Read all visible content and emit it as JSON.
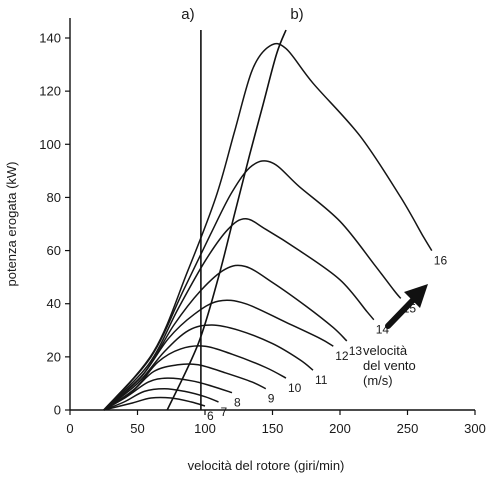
{
  "chart_data": {
    "type": "line",
    "title": "",
    "xlabel": "velocità del rotore (giri/min)",
    "ylabel": "potenza erogata (kW)",
    "xlim": [
      0,
      300
    ],
    "ylim": [
      0,
      145
    ],
    "xticks": [
      0,
      50,
      100,
      150,
      200,
      250,
      300
    ],
    "yticks": [
      0,
      20,
      40,
      60,
      80,
      100,
      120,
      140
    ],
    "grid": false,
    "series": [
      {
        "name": "6",
        "points": [
          [
            25,
            0
          ],
          [
            45,
            2.5
          ],
          [
            60,
            4.5
          ],
          [
            75,
            4.5
          ],
          [
            90,
            3
          ],
          [
            100,
            1.5
          ]
        ]
      },
      {
        "name": "7",
        "points": [
          [
            25,
            0
          ],
          [
            40,
            3
          ],
          [
            55,
            7
          ],
          [
            70,
            8
          ],
          [
            85,
            7
          ],
          [
            100,
            5
          ],
          [
            110,
            3
          ]
        ]
      },
      {
        "name": "8",
        "points": [
          [
            25,
            0
          ],
          [
            42,
            5
          ],
          [
            58,
            10.5
          ],
          [
            72,
            12
          ],
          [
            90,
            11
          ],
          [
            105,
            9
          ],
          [
            120,
            6.5
          ]
        ]
      },
      {
        "name": "9",
        "points": [
          [
            25,
            0
          ],
          [
            45,
            6.5
          ],
          [
            62,
            14.5
          ],
          [
            80,
            17
          ],
          [
            95,
            17
          ],
          [
            115,
            14
          ],
          [
            135,
            10.5
          ],
          [
            145,
            8
          ]
        ]
      },
      {
        "name": "10",
        "points": [
          [
            25,
            0
          ],
          [
            48,
            8
          ],
          [
            65,
            18
          ],
          [
            82,
            23
          ],
          [
            100,
            24
          ],
          [
            120,
            21
          ],
          [
            145,
            16
          ],
          [
            160,
            12
          ]
        ]
      },
      {
        "name": "11",
        "points": [
          [
            25,
            0
          ],
          [
            50,
            10
          ],
          [
            70,
            22
          ],
          [
            88,
            30
          ],
          [
            105,
            32
          ],
          [
            125,
            30
          ],
          [
            150,
            25
          ],
          [
            170,
            19
          ],
          [
            180,
            15
          ]
        ]
      },
      {
        "name": "12",
        "points": [
          [
            25,
            0
          ],
          [
            52,
            12
          ],
          [
            73,
            27
          ],
          [
            92,
            36
          ],
          [
            110,
            41
          ],
          [
            130,
            40
          ],
          [
            160,
            33
          ],
          [
            185,
            27
          ],
          [
            195,
            24
          ]
        ]
      },
      {
        "name": "13",
        "points": [
          [
            25,
            0
          ],
          [
            55,
            14
          ],
          [
            77,
            32
          ],
          [
            97,
            45
          ],
          [
            115,
            53
          ],
          [
            130,
            54
          ],
          [
            150,
            48
          ],
          [
            175,
            39
          ],
          [
            195,
            31
          ],
          [
            205,
            26
          ]
        ]
      },
      {
        "name": "14",
        "points": [
          [
            25,
            0
          ],
          [
            58,
            17
          ],
          [
            80,
            38
          ],
          [
            100,
            56
          ],
          [
            117,
            68
          ],
          [
            130,
            72
          ],
          [
            145,
            68
          ],
          [
            170,
            60
          ],
          [
            200,
            49
          ],
          [
            220,
            37
          ],
          [
            225,
            34
          ]
        ]
      },
      {
        "name": "15",
        "points": [
          [
            25,
            0
          ],
          [
            60,
            20
          ],
          [
            84,
            45
          ],
          [
            104,
            66
          ],
          [
            120,
            82
          ],
          [
            135,
            92
          ],
          [
            150,
            93
          ],
          [
            170,
            84
          ],
          [
            200,
            71
          ],
          [
            225,
            55
          ],
          [
            240,
            45
          ],
          [
            245,
            42
          ]
        ]
      },
      {
        "name": "16",
        "points": [
          [
            25,
            0
          ],
          [
            62,
            22
          ],
          [
            87,
            52
          ],
          [
            108,
            80
          ],
          [
            122,
            105
          ],
          [
            135,
            128
          ],
          [
            148,
            137
          ],
          [
            160,
            136
          ],
          [
            180,
            123
          ],
          [
            215,
            103
          ],
          [
            245,
            80
          ],
          [
            262,
            65
          ],
          [
            268,
            60
          ]
        ]
      }
    ],
    "envelopes": [
      {
        "name": "a)",
        "points": [
          [
            97,
            0
          ],
          [
            97,
            143
          ]
        ]
      },
      {
        "name": "b)",
        "points": [
          [
            72,
            0
          ],
          [
            95,
            25
          ],
          [
            110,
            50
          ],
          [
            122,
            74
          ],
          [
            133,
            96
          ],
          [
            143,
            115
          ],
          [
            153,
            134
          ],
          [
            160,
            143
          ]
        ]
      }
    ],
    "annotations": {
      "legend_text": [
        "velocità",
        "del vento",
        "(m/s)"
      ],
      "envelope_a_label": "a)",
      "envelope_b_label": "b)"
    }
  }
}
